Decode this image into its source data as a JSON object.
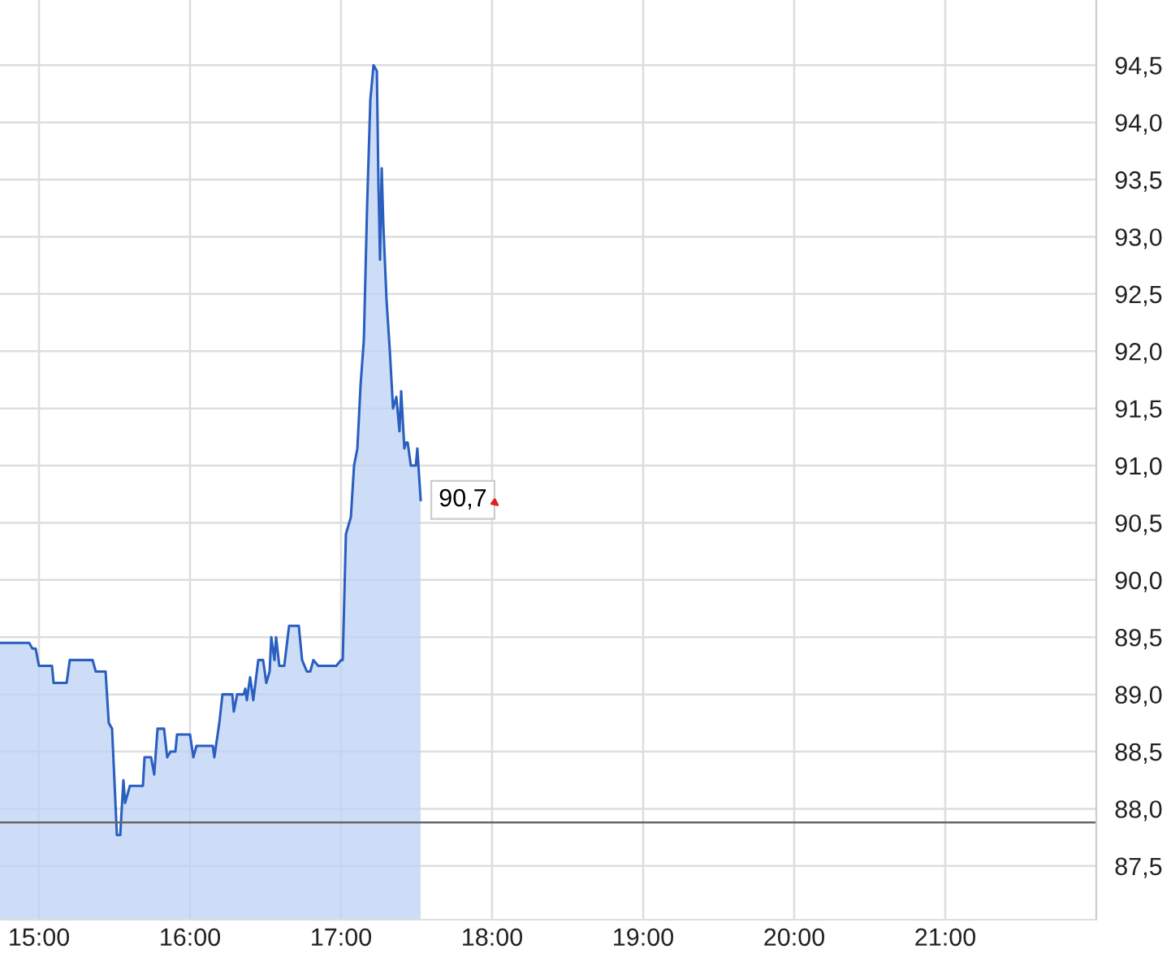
{
  "chart_data": {
    "type": "area",
    "series": [
      {
        "color": "#2a5fbf",
        "x": [
          14.742,
          14.935,
          14.957,
          14.978,
          15.0,
          15.086,
          15.097,
          15.183,
          15.204,
          15.355,
          15.376,
          15.441,
          15.462,
          15.484,
          15.516,
          15.538,
          15.559,
          15.57,
          15.602,
          15.688,
          15.699,
          15.742,
          15.763,
          15.785,
          15.828,
          15.849,
          15.871,
          15.903,
          15.914,
          16.0,
          16.022,
          16.043,
          16.151,
          16.161,
          16.194,
          16.215,
          16.28,
          16.29,
          16.312,
          16.355,
          16.366,
          16.376,
          16.398,
          16.419,
          16.452,
          16.484,
          16.505,
          16.527,
          16.538,
          16.559,
          16.57,
          16.591,
          16.624,
          16.656,
          16.72,
          16.742,
          16.774,
          16.796,
          16.817,
          16.849,
          16.968,
          17.0,
          17.011,
          17.032,
          17.065,
          17.086,
          17.108,
          17.129,
          17.151,
          17.172,
          17.194,
          17.215,
          17.237,
          17.247,
          17.258,
          17.269,
          17.28,
          17.301,
          17.323,
          17.344,
          17.366,
          17.387,
          17.398,
          17.419,
          17.43,
          17.441,
          17.462,
          17.495,
          17.505,
          17.527
        ],
        "values": [
          89.45,
          89.45,
          89.4,
          89.4,
          89.25,
          89.25,
          89.1,
          89.1,
          89.3,
          89.3,
          89.2,
          89.2,
          88.75,
          88.7,
          87.77,
          87.77,
          88.25,
          88.05,
          88.2,
          88.2,
          88.45,
          88.45,
          88.3,
          88.7,
          88.7,
          88.45,
          88.5,
          88.5,
          88.65,
          88.65,
          88.45,
          88.55,
          88.55,
          88.45,
          88.75,
          89.0,
          89.0,
          88.85,
          89.0,
          89.0,
          89.05,
          88.95,
          89.15,
          88.95,
          89.3,
          89.3,
          89.1,
          89.2,
          89.5,
          89.3,
          89.5,
          89.25,
          89.25,
          89.6,
          89.6,
          89.3,
          89.2,
          89.2,
          89.3,
          89.25,
          89.25,
          89.3,
          89.3,
          90.4,
          90.55,
          91.0,
          91.15,
          91.7,
          92.1,
          93.25,
          94.2,
          94.5,
          94.45,
          93.5,
          92.8,
          93.6,
          93.1,
          92.45,
          92.0,
          91.5,
          91.6,
          91.3,
          91.65,
          91.15,
          91.2,
          91.2,
          91.0,
          91.0,
          91.15,
          90.7
        ]
      }
    ],
    "xlim": [
      14.742,
      22.0
    ],
    "ylim": [
      87.03,
      95.07
    ],
    "xticks": [
      {
        "value": 15,
        "label": "15:00"
      },
      {
        "value": 16,
        "label": "16:00"
      },
      {
        "value": 17,
        "label": "17:00"
      },
      {
        "value": 18,
        "label": "18:00"
      },
      {
        "value": 19,
        "label": "19:00"
      },
      {
        "value": 20,
        "label": "20:00"
      },
      {
        "value": 21,
        "label": "21:00"
      }
    ],
    "yticks": [
      {
        "value": 87.5,
        "label": "87,5"
      },
      {
        "value": 88.0,
        "label": "88,0"
      },
      {
        "value": 88.5,
        "label": "88,5"
      },
      {
        "value": 89.0,
        "label": "89,0"
      },
      {
        "value": 89.5,
        "label": "89,5"
      },
      {
        "value": 90.0,
        "label": "90,0"
      },
      {
        "value": 90.5,
        "label": "90,5"
      },
      {
        "value": 91.0,
        "label": "91,0"
      },
      {
        "value": 91.5,
        "label": "91,5"
      },
      {
        "value": 92.0,
        "label": "92,0"
      },
      {
        "value": 92.5,
        "label": "92,5"
      },
      {
        "value": 93.0,
        "label": "93,0"
      },
      {
        "value": 93.5,
        "label": "93,5"
      },
      {
        "value": 94.0,
        "label": "94,0"
      },
      {
        "value": 94.5,
        "label": "94,5"
      }
    ],
    "ref_lines": [
      {
        "axis": "y",
        "value": 87.88,
        "color": "#666666"
      }
    ],
    "annotations": [
      {
        "text": "90,7",
        "x": 17.527,
        "y": 90.7
      }
    ],
    "grid": true,
    "legend": false
  }
}
